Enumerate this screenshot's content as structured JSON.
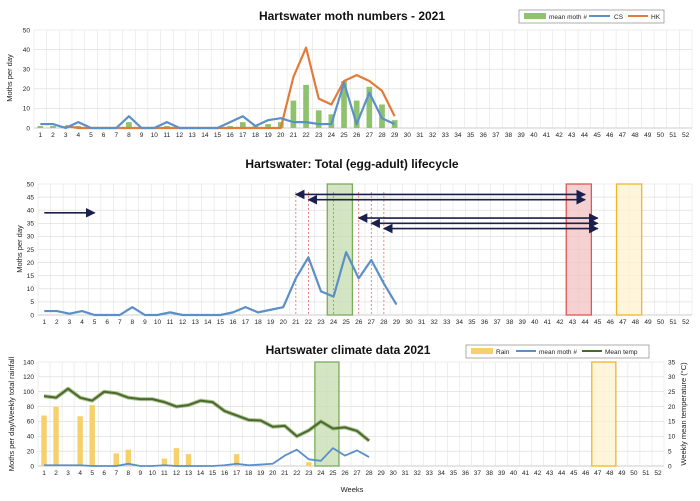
{
  "weeks": [
    1,
    2,
    3,
    4,
    5,
    6,
    7,
    8,
    9,
    10,
    11,
    12,
    13,
    14,
    15,
    16,
    17,
    18,
    19,
    20,
    21,
    22,
    23,
    24,
    25,
    26,
    27,
    28,
    29,
    30,
    31,
    32,
    33,
    34,
    35,
    36,
    37,
    38,
    39,
    40,
    41,
    42,
    43,
    44,
    45,
    46,
    47,
    48,
    49,
    50,
    51,
    52
  ],
  "chart_data": [
    {
      "type": "bar+line",
      "title": "Hartswater moth numbers - 2021",
      "ylabel": "Moths per day",
      "xlabel": "",
      "ylim": [
        0,
        50
      ],
      "yticks": [
        0,
        10,
        20,
        30,
        40,
        50
      ],
      "grid": true,
      "legend_position": "top-right",
      "series": [
        {
          "name": "mean moth #",
          "kind": "bar",
          "color": "#8fc26e",
          "x": [
            1,
            2,
            3,
            4,
            5,
            6,
            7,
            8,
            9,
            10,
            11,
            12,
            13,
            14,
            15,
            16,
            17,
            18,
            19,
            20,
            21,
            22,
            23,
            24,
            25,
            26,
            27,
            28,
            29
          ],
          "values": [
            1,
            1,
            1,
            1,
            0,
            0,
            0,
            3,
            0,
            0,
            1,
            0,
            0,
            0,
            0,
            1,
            3,
            1,
            2,
            3,
            14,
            22,
            9,
            7,
            24,
            14,
            21,
            12,
            4
          ]
        },
        {
          "name": "CS",
          "kind": "line",
          "color": "#5b8fc7",
          "x": [
            1,
            2,
            3,
            4,
            5,
            6,
            7,
            8,
            9,
            10,
            11,
            12,
            13,
            14,
            15,
            16,
            17,
            18,
            19,
            20,
            21,
            22,
            23,
            24,
            25,
            26,
            27,
            28,
            29
          ],
          "values": [
            2,
            2,
            0,
            3,
            0,
            0,
            0,
            6,
            0,
            0,
            3,
            0,
            0,
            0,
            0,
            3,
            6,
            1,
            4,
            5,
            3,
            3,
            2,
            2,
            23,
            2,
            18,
            5,
            2
          ]
        },
        {
          "name": "HK",
          "kind": "line",
          "color": "#e07b39",
          "x": [
            3,
            4,
            5,
            6,
            7,
            8,
            9,
            10,
            11,
            12,
            13,
            14,
            15,
            16,
            17,
            18,
            19,
            20,
            21,
            22,
            23,
            24,
            25,
            26,
            27,
            28,
            29
          ],
          "values": [
            1,
            0,
            0,
            0,
            0,
            0,
            0,
            0,
            0,
            0,
            0,
            0,
            0,
            0,
            0,
            0,
            0,
            0,
            26,
            41,
            15,
            12,
            24,
            27,
            24,
            19,
            6
          ]
        }
      ]
    },
    {
      "type": "line",
      "title": "Hartswater: Total (egg-adult) lifecycle",
      "ylabel": "Moths per day",
      "xlabel": "",
      "ylim": [
        0,
        50
      ],
      "yticks": [
        0,
        5,
        10,
        15,
        20,
        25,
        30,
        35,
        40,
        45,
        50
      ],
      "grid": true,
      "series": [
        {
          "name": "",
          "color": "#5b8fc7",
          "x": [
            1,
            2,
            3,
            4,
            5,
            6,
            7,
            8,
            9,
            10,
            11,
            12,
            13,
            14,
            15,
            16,
            17,
            18,
            19,
            20,
            21,
            22,
            23,
            24,
            25,
            26,
            27,
            28,
            29
          ],
          "values": [
            1.5,
            1.5,
            0.5,
            1.5,
            0,
            0,
            0,
            3,
            0,
            0,
            1,
            0,
            0,
            0,
            0,
            1,
            3,
            1,
            2,
            3,
            14,
            22,
            9,
            7,
            24,
            14,
            21,
            12,
            4
          ]
        }
      ],
      "vlines_weeks": [
        21,
        22,
        24,
        26,
        27,
        28
      ],
      "shaded_bands": [
        {
          "from": 24,
          "to": 26,
          "fill": "#c5dcb0",
          "stroke": "#7aab5a"
        },
        {
          "from": 43,
          "to": 45,
          "fill": "#f1c2c2",
          "stroke": "#e05656"
        },
        {
          "from": 47,
          "to": 49,
          "fill": "#fff2cf",
          "stroke": "#f2b526"
        }
      ],
      "arrows": [
        {
          "from": 1,
          "to": 5,
          "y": 39,
          "heads": "end"
        },
        {
          "from": 21,
          "to": 44,
          "y": 46,
          "heads": "both"
        },
        {
          "from": 22,
          "to": 44,
          "y": 44,
          "heads": "both"
        },
        {
          "from": 26,
          "to": 45,
          "y": 37,
          "heads": "both"
        },
        {
          "from": 27,
          "to": 45,
          "y": 35,
          "heads": "both"
        },
        {
          "from": 28,
          "to": 45,
          "y": 33,
          "heads": "both"
        }
      ]
    },
    {
      "type": "bar+line",
      "title": "Hartswater climate data 2021",
      "ylabel": "Moths per day/Weekly total rainfall",
      "y2label": "Weekly mean temperature (°C)",
      "xlabel": "Weeks",
      "ylim": [
        0,
        140
      ],
      "yticks": [
        0,
        20,
        40,
        60,
        80,
        100,
        120,
        140
      ],
      "y2lim": [
        0,
        35
      ],
      "y2ticks": [
        0,
        5,
        10,
        15,
        20,
        25,
        30,
        35
      ],
      "grid": true,
      "legend_position": "top-right",
      "series": [
        {
          "name": "Rain",
          "kind": "bar",
          "axis": "left",
          "color": "#f5d06b",
          "x": [
            1,
            2,
            4,
            5,
            7,
            8,
            11,
            12,
            13,
            17,
            23
          ],
          "values": [
            68,
            80,
            67,
            82,
            17,
            22,
            10,
            24,
            16,
            16,
            5
          ]
        },
        {
          "name": "mean moth #",
          "kind": "line",
          "axis": "left",
          "color": "#5b8fc7",
          "x": [
            1,
            2,
            3,
            4,
            5,
            6,
            7,
            8,
            9,
            10,
            11,
            12,
            13,
            14,
            15,
            16,
            17,
            18,
            19,
            20,
            21,
            22,
            23,
            24,
            25,
            26,
            27,
            28
          ],
          "values": [
            1,
            1,
            1,
            1,
            0,
            0,
            0,
            3,
            0,
            0,
            1,
            0,
            0,
            0,
            0,
            1,
            3,
            1,
            2,
            3,
            14,
            22,
            9,
            7,
            24,
            14,
            21,
            12
          ]
        },
        {
          "name": "Mean temp",
          "kind": "line",
          "axis": "right",
          "color": "#4a6b28",
          "x": [
            1,
            2,
            3,
            4,
            5,
            6,
            7,
            8,
            9,
            10,
            11,
            12,
            13,
            14,
            15,
            16,
            17,
            18,
            19,
            20,
            21,
            22,
            23,
            24,
            25,
            26,
            27,
            28
          ],
          "values": [
            23.5,
            23,
            26,
            23,
            22,
            25,
            24.5,
            23,
            22.5,
            22.5,
            21.5,
            20,
            20.5,
            22,
            21.5,
            18.5,
            17,
            15.5,
            15.3,
            13.2,
            13.5,
            10,
            12,
            15,
            12.6,
            13,
            11.8,
            8.5
          ]
        }
      ],
      "shaded_bands": [
        {
          "from": 24,
          "to": 26,
          "fill": "#c5dcb0",
          "stroke": "#7aab5a"
        },
        {
          "from": 47,
          "to": 49,
          "fill": "#fff2cf",
          "stroke": "#f2b526"
        }
      ]
    }
  ]
}
